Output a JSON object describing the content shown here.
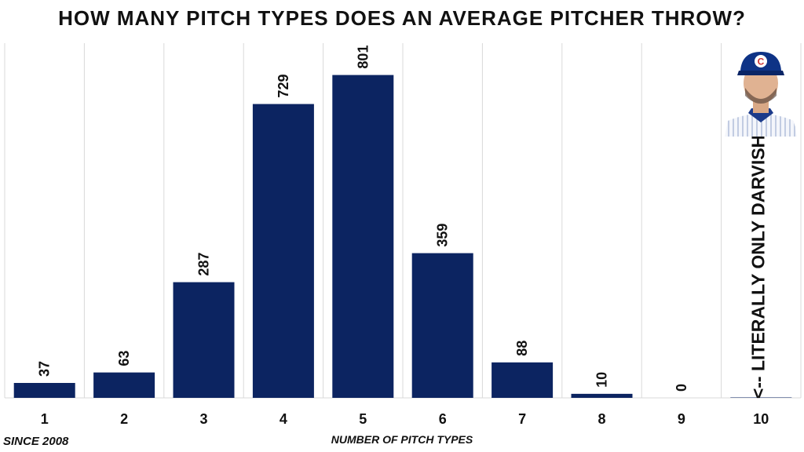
{
  "chart_data": {
    "type": "bar",
    "title": "HOW MANY PITCH TYPES DOES AN AVERAGE PITCHER THROW?",
    "xlabel": "NUMBER OF PITCH TYPES",
    "ylabel": "",
    "categories": [
      "1",
      "2",
      "3",
      "4",
      "5",
      "6",
      "7",
      "8",
      "9",
      "10"
    ],
    "values": [
      37,
      63,
      287,
      729,
      801,
      359,
      88,
      10,
      0,
      1
    ],
    "data_labels": [
      "37",
      "63",
      "287",
      "729",
      "801",
      "359",
      "88",
      "10",
      "0",
      ""
    ],
    "ylim": [
      0,
      880
    ],
    "bar_color": "#0c2461",
    "annotation": "<-- LITERALLY ONLY DARVISH",
    "note": "SINCE 2008"
  },
  "colors": {
    "bar": "#0c2461",
    "grid": "#d9d9d9",
    "text": "#111111"
  }
}
